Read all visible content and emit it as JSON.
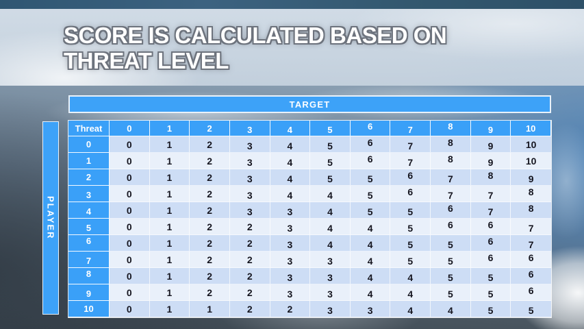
{
  "slide": {
    "title_lines": [
      "SCORE IS CALCULATED BASED ON",
      "THREAT LEVEL"
    ]
  },
  "colors": {
    "accent_blue": "#3aa0f8",
    "banner_border": "#e9f2fb",
    "row_band_dark": "#cdddf5",
    "row_band_light": "#e9f0fa",
    "cell_text": "#15151f",
    "header_text": "#ffffff",
    "top_strip": "#33586f"
  },
  "chart_data": {
    "type": "table",
    "title": "SCORE IS CALCULATED BASED ON THREAT LEVEL",
    "column_axis_title": "TARGET",
    "row_axis_title": "PLAYER",
    "corner_header": "Threat",
    "columns": [
      0,
      1,
      2,
      3,
      4,
      5,
      6,
      7,
      8,
      9,
      10
    ],
    "rows": [
      {
        "threat": 0,
        "scores": [
          0,
          1,
          2,
          3,
          4,
          5,
          6,
          7,
          8,
          9,
          10
        ]
      },
      {
        "threat": 1,
        "scores": [
          0,
          1,
          2,
          3,
          4,
          5,
          6,
          7,
          8,
          9,
          10
        ]
      },
      {
        "threat": 2,
        "scores": [
          0,
          1,
          2,
          3,
          4,
          5,
          5,
          6,
          7,
          8,
          9
        ]
      },
      {
        "threat": 3,
        "scores": [
          0,
          1,
          2,
          3,
          4,
          4,
          5,
          6,
          7,
          7,
          8
        ]
      },
      {
        "threat": 4,
        "scores": [
          0,
          1,
          2,
          3,
          3,
          4,
          5,
          5,
          6,
          7,
          8
        ]
      },
      {
        "threat": 5,
        "scores": [
          0,
          1,
          2,
          2,
          3,
          4,
          4,
          5,
          6,
          6,
          7
        ]
      },
      {
        "threat": 6,
        "scores": [
          0,
          1,
          2,
          2,
          3,
          4,
          4,
          5,
          5,
          6,
          7
        ]
      },
      {
        "threat": 7,
        "scores": [
          0,
          1,
          2,
          2,
          3,
          3,
          4,
          5,
          5,
          6,
          6
        ]
      },
      {
        "threat": 8,
        "scores": [
          0,
          1,
          2,
          2,
          3,
          3,
          4,
          4,
          5,
          5,
          6
        ]
      },
      {
        "threat": 9,
        "scores": [
          0,
          1,
          2,
          2,
          3,
          3,
          4,
          4,
          5,
          5,
          6
        ]
      },
      {
        "threat": 10,
        "scores": [
          0,
          1,
          1,
          2,
          2,
          3,
          3,
          4,
          4,
          5,
          5
        ]
      }
    ]
  }
}
